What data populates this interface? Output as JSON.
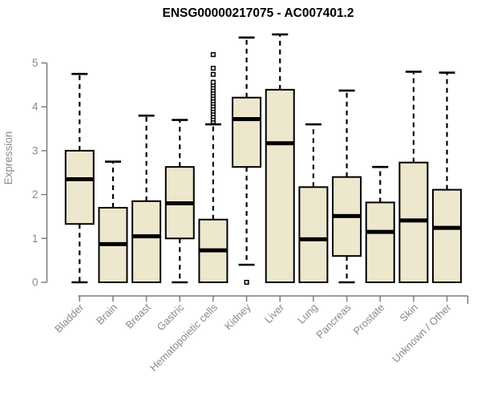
{
  "chart_data": {
    "type": "boxplot",
    "title": "ENSG00000217075 - AC007401.2",
    "xlabel": "",
    "ylabel": "Expression",
    "ylim": [
      0,
      5
    ],
    "y_ticks": [
      0,
      1,
      2,
      3,
      4,
      5
    ],
    "grid": false,
    "legend": "none",
    "categories": [
      "Bladder",
      "Brain",
      "Breast",
      "Gastric",
      "Hematopoietic cells",
      "Kidney",
      "Liver",
      "Lung",
      "Pancreas",
      "Prostate",
      "Skin",
      "Unknown / Other"
    ],
    "series": [
      {
        "name": "Bladder",
        "min": 0,
        "q1": 1.33,
        "median": 2.35,
        "q3": 3.0,
        "max": 4.75,
        "outliers": []
      },
      {
        "name": "Brain",
        "min": 0,
        "q1": 0,
        "median": 0.87,
        "q3": 1.7,
        "max": 2.75,
        "outliers": []
      },
      {
        "name": "Breast",
        "min": 0,
        "q1": 0,
        "median": 1.05,
        "q3": 1.85,
        "max": 3.8,
        "outliers": []
      },
      {
        "name": "Gastric",
        "min": 0,
        "q1": 1.0,
        "median": 1.8,
        "q3": 2.63,
        "max": 3.7,
        "outliers": []
      },
      {
        "name": "Hematopoietic cells",
        "min": 0,
        "q1": 0,
        "median": 0.73,
        "q3": 1.43,
        "max": 3.6,
        "outliers": [
          3.66,
          3.72,
          3.78,
          3.84,
          3.9,
          3.96,
          4.02,
          4.08,
          4.14,
          4.2,
          4.26,
          4.32,
          4.38,
          4.44,
          4.5,
          4.56,
          4.74,
          4.88,
          5.19
        ]
      },
      {
        "name": "Kidney",
        "min": 0.4,
        "q1": 2.63,
        "median": 3.72,
        "q3": 4.21,
        "max": 5.58,
        "outliers": [
          0.0
        ]
      },
      {
        "name": "Liver",
        "min": 0,
        "q1": 0,
        "median": 3.17,
        "q3": 4.39,
        "max": 5.65,
        "outliers": []
      },
      {
        "name": "Lung",
        "min": 0,
        "q1": 0,
        "median": 0.98,
        "q3": 2.17,
        "max": 3.6,
        "outliers": []
      },
      {
        "name": "Pancreas",
        "min": 0,
        "q1": 0.6,
        "median": 1.51,
        "q3": 2.4,
        "max": 4.37,
        "outliers": []
      },
      {
        "name": "Prostate",
        "min": 0,
        "q1": 0,
        "median": 1.15,
        "q3": 1.82,
        "max": 2.63,
        "outliers": []
      },
      {
        "name": "Skin",
        "min": 0,
        "q1": 0,
        "median": 1.41,
        "q3": 2.73,
        "max": 4.8,
        "outliers": []
      },
      {
        "name": "Unknown / Other",
        "min": 0,
        "q1": 0,
        "median": 1.24,
        "q3": 2.11,
        "max": 4.78,
        "outliers": []
      }
    ],
    "colors": {
      "box_fill": "#ece7cd",
      "box_border": "#000000",
      "median": "#000000",
      "whisker": "#000000",
      "outlier_stroke": "#000000",
      "outlier_fill": "#ffffff",
      "axis": "#7d7d7d",
      "tick_label": "#8a8a8a",
      "title": "#000000",
      "background": "#ffffff"
    }
  }
}
